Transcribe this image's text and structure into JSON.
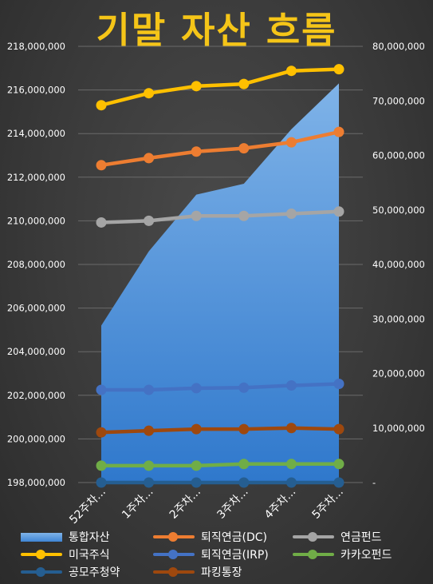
{
  "title": "기말 자산 흐름",
  "chart_data": {
    "type": "line",
    "categories": [
      "52주차...",
      "1주차...",
      "2주차...",
      "3주차...",
      "4주차...",
      "5주차..."
    ],
    "left_axis": {
      "ylim": [
        198000000,
        218000000
      ],
      "ticks": [
        "198,000,000",
        "200,000,000",
        "202,000,000",
        "204,000,000",
        "206,000,000",
        "208,000,000",
        "210,000,000",
        "212,000,000",
        "214,000,000",
        "216,000,000",
        "218,000,000"
      ]
    },
    "right_axis": {
      "ylim": [
        0,
        80000000
      ],
      "ticks": [
        "-",
        "10,000,000",
        "20,000,000",
        "30,000,000",
        "40,000,000",
        "50,000,000",
        "60,000,000",
        "70,000,000",
        "80,000,000"
      ]
    },
    "grid": true,
    "legend_position": "bottom",
    "series": [
      {
        "name": "통합자산",
        "kind": "area",
        "axis": "left",
        "color": "#5b9bd5",
        "values": [
          205200000,
          208600000,
          211200000,
          211700000,
          214200000,
          216300000
        ]
      },
      {
        "name": "퇴직연금(DC)",
        "kind": "line",
        "axis": "right",
        "color": "#ed7d31",
        "values": [
          58200000,
          59500000,
          60700000,
          61300000,
          62400000,
          64300000
        ]
      },
      {
        "name": "연금펀드",
        "kind": "line",
        "axis": "right",
        "color": "#a5a5a5",
        "values": [
          47700000,
          48000000,
          48900000,
          48900000,
          49300000,
          49700000
        ]
      },
      {
        "name": "미국주식",
        "kind": "line",
        "axis": "right",
        "color": "#ffc000",
        "values": [
          69200000,
          71400000,
          72700000,
          73100000,
          75500000,
          75800000
        ]
      },
      {
        "name": "퇴직연금(IRP)",
        "kind": "line",
        "axis": "right",
        "color": "#4472c4",
        "values": [
          17000000,
          17000000,
          17300000,
          17400000,
          17800000,
          18100000
        ]
      },
      {
        "name": "카카오펀드",
        "kind": "line",
        "axis": "right",
        "color": "#70ad47",
        "values": [
          3100000,
          3100000,
          3100000,
          3400000,
          3400000,
          3400000
        ]
      },
      {
        "name": "공모주청약",
        "kind": "line",
        "axis": "right",
        "color": "#255e91",
        "values": [
          0,
          0,
          0,
          0,
          0,
          0
        ]
      },
      {
        "name": "파킹통장",
        "kind": "line",
        "axis": "right",
        "color": "#9e480e",
        "values": [
          9200000,
          9500000,
          9800000,
          9800000,
          10000000,
          9800000
        ]
      }
    ]
  }
}
